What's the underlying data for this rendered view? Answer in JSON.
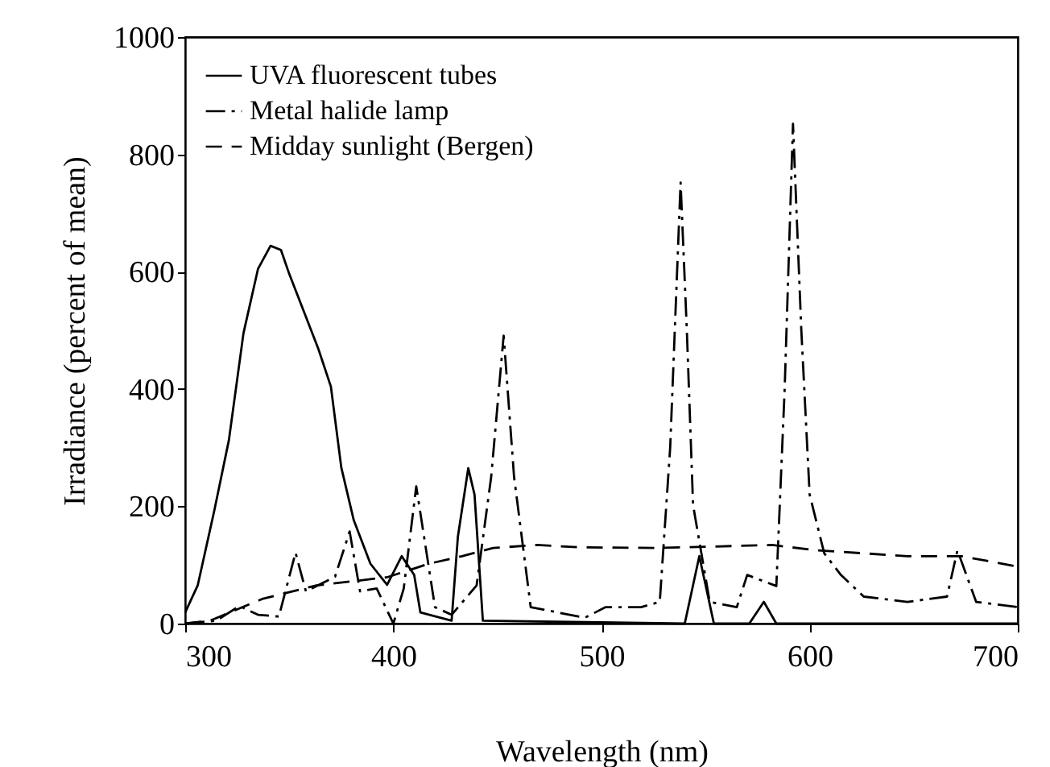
{
  "chart_data": {
    "type": "line",
    "xlabel": "Wavelength (nm)",
    "ylabel": "Irradiance (percent of mean)",
    "xlim": [
      300,
      700
    ],
    "ylim": [
      0,
      1000
    ],
    "xticks": [
      300,
      400,
      500,
      600,
      700
    ],
    "yticks": [
      0,
      200,
      400,
      600,
      800,
      1000
    ],
    "grid": false,
    "legend": "top left",
    "marker": "none",
    "series": [
      {
        "name": "UVA fluorescent tubes",
        "color": "#000000",
        "line_style": "solid",
        "x": [
          300,
          306,
          314,
          321,
          328,
          335,
          341,
          346,
          350,
          358,
          364,
          370,
          375,
          381,
          389,
          397,
          404,
          410,
          413,
          428,
          431,
          436,
          439,
          443,
          540,
          547,
          554,
          571,
          578,
          584,
          700
        ],
        "values": [
          19,
          65,
          193,
          313,
          495,
          605,
          644,
          637,
          596,
          523,
          468,
          404,
          266,
          176,
          102,
          66,
          115,
          83,
          19,
          5,
          148,
          265,
          220,
          5,
          0,
          115,
          0,
          0,
          37,
          0,
          0
        ]
      },
      {
        "name": "Metal halide lamp",
        "color": "#000000",
        "line_style": "dashdot",
        "x": [
          300,
          315,
          326,
          335,
          345,
          353,
          358,
          372,
          379,
          384,
          392,
          400,
          405,
          411,
          420,
          428,
          440,
          447,
          453,
          458,
          466,
          492,
          502,
          519,
          528,
          533,
          538,
          541,
          544,
          552,
          565,
          570,
          584,
          588,
          592,
          596,
          600,
          607,
          615,
          626,
          647,
          666,
          671,
          680,
          700
        ],
        "values": [
          0,
          5,
          30,
          15,
          12,
          121,
          55,
          80,
          157,
          55,
          60,
          0,
          60,
          234,
          28,
          15,
          65,
          250,
          491,
          250,
          28,
          10,
          28,
          28,
          37,
          300,
          752,
          500,
          202,
          37,
          28,
          83,
          64,
          400,
          852,
          500,
          220,
          120,
          83,
          46,
          37,
          46,
          125,
          37,
          28
        ]
      },
      {
        "name": "Midday sunlight (Bergen)",
        "color": "#000000",
        "line_style": "dashed",
        "x": [
          300,
          312,
          337,
          363,
          397,
          417,
          433,
          448,
          469,
          490,
          528,
          582,
          603,
          647,
          673,
          700
        ],
        "values": [
          0,
          5,
          42,
          65,
          79,
          102,
          115,
          129,
          134,
          130,
          129,
          134,
          125,
          115,
          115,
          97
        ]
      }
    ]
  }
}
